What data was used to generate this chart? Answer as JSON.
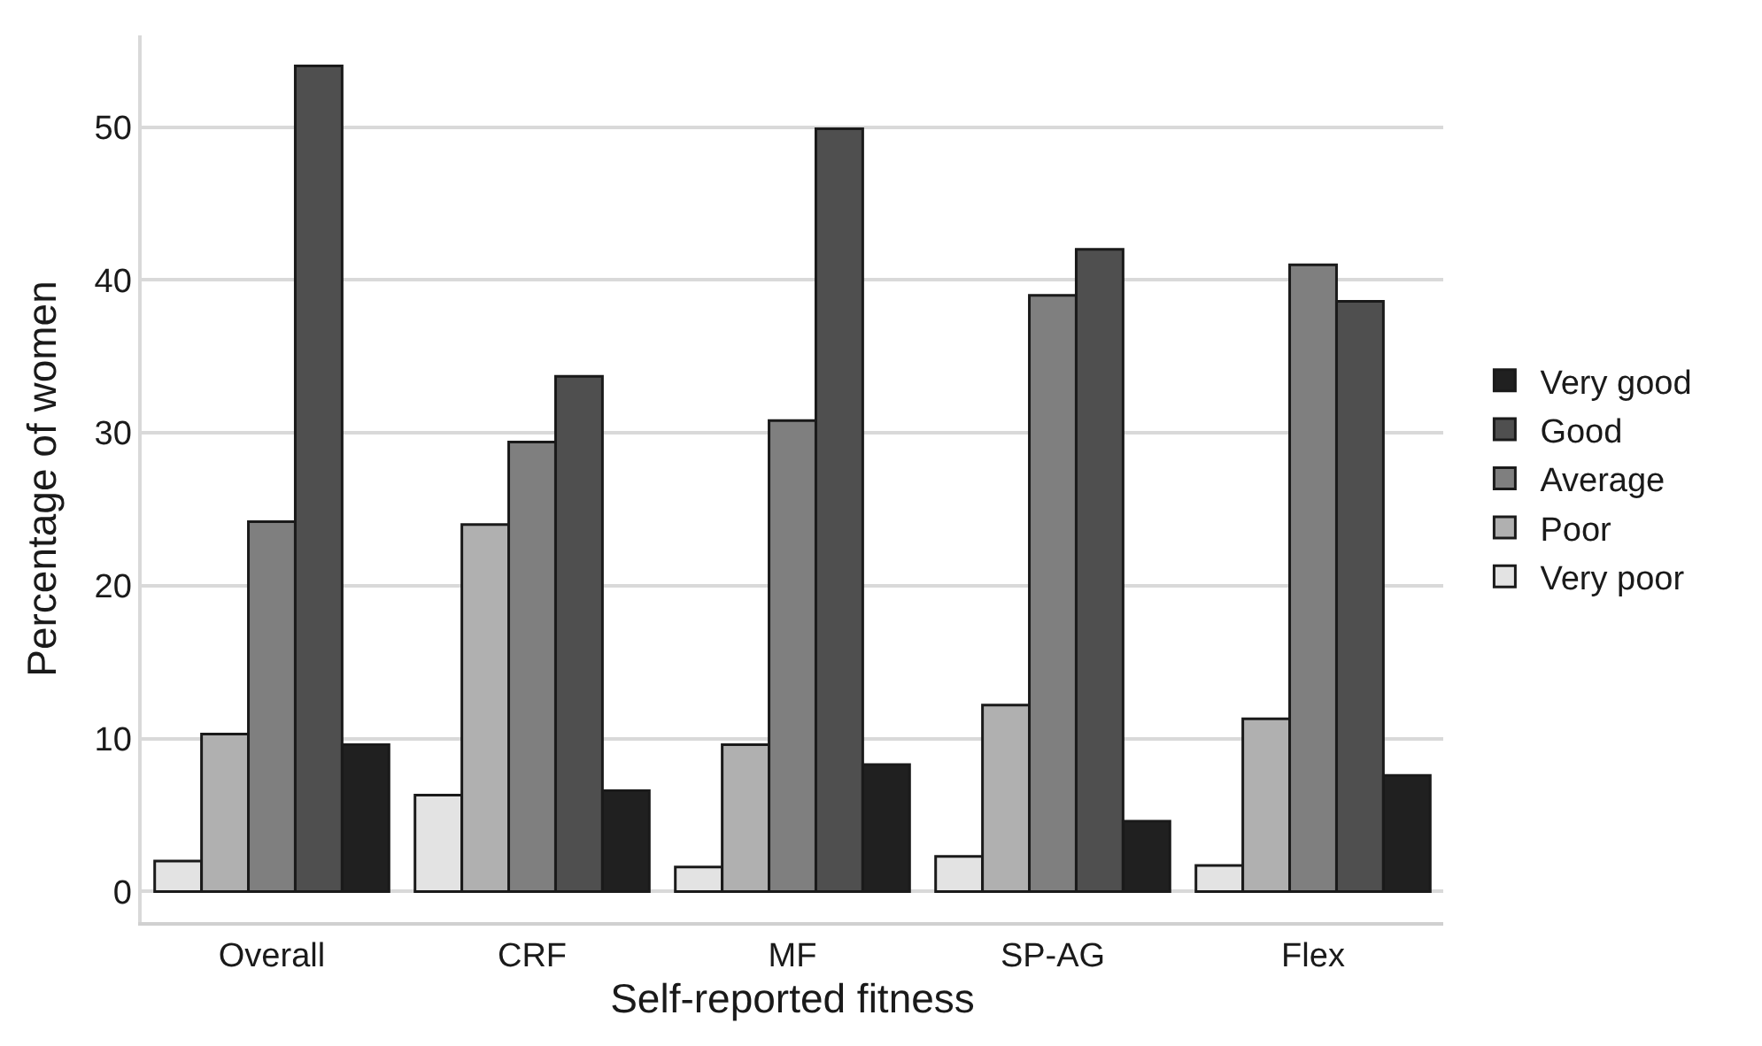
{
  "chart_data": {
    "type": "bar",
    "xlabel": "Self-reported fitness",
    "ylabel": "Percentage of women",
    "categories": [
      "Overall",
      "CRF",
      "MF",
      "SP-AG",
      "Flex"
    ],
    "series": [
      {
        "name": "Very poor",
        "color": "#e3e3e3",
        "values": [
          2.0,
          6.3,
          1.6,
          2.3,
          1.7
        ]
      },
      {
        "name": "Poor",
        "color": "#b0b0b0",
        "values": [
          10.3,
          24.0,
          9.6,
          12.2,
          11.3
        ]
      },
      {
        "name": "Average",
        "color": "#7f7f7f",
        "values": [
          24.2,
          29.4,
          30.8,
          39.0,
          41.0
        ]
      },
      {
        "name": "Good",
        "color": "#4f4f4f",
        "values": [
          54.0,
          33.7,
          49.9,
          42.0,
          38.6
        ]
      },
      {
        "name": "Very good",
        "color": "#202020",
        "values": [
          9.6,
          6.6,
          8.3,
          4.6,
          7.6
        ]
      }
    ],
    "ylim": [
      -2,
      56
    ],
    "yticks": [
      0,
      10,
      20,
      30,
      40,
      50
    ],
    "grid": "y",
    "legend": "right"
  }
}
